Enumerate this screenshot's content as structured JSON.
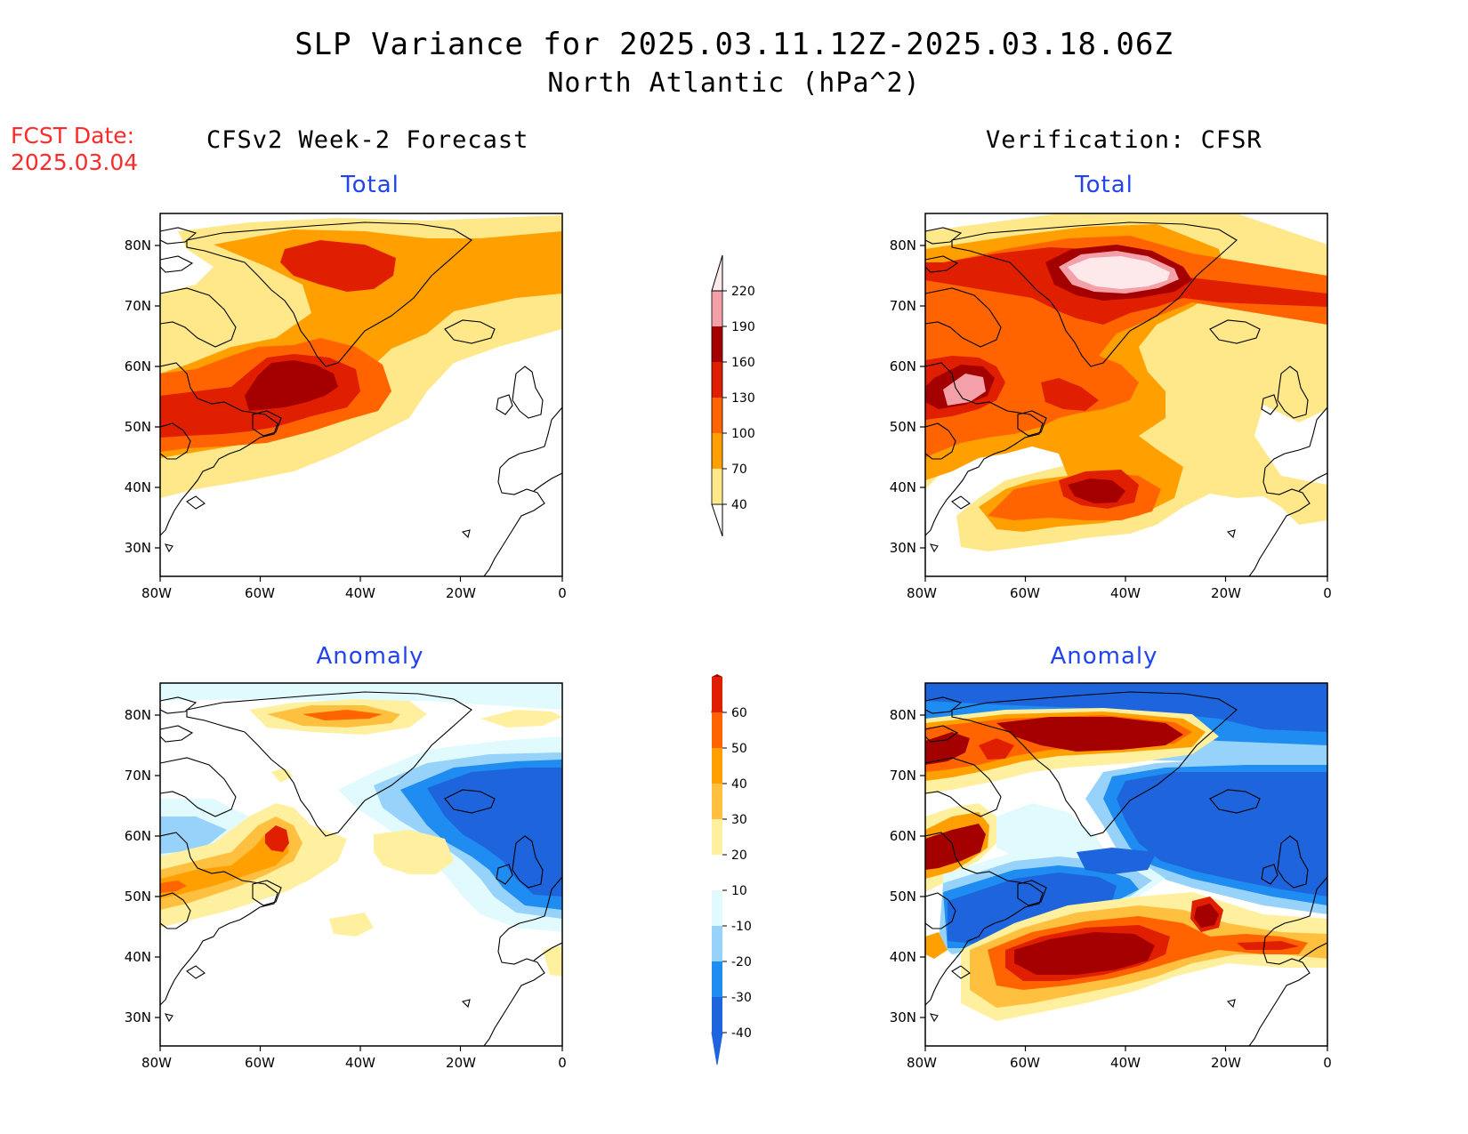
{
  "title": {
    "main": "SLP Variance for 2025.03.11.12Z-2025.03.18.06Z",
    "sub": "North Atlantic (hPa^2)"
  },
  "forecast_date": {
    "label": "FCST Date:",
    "value": "2025.03.04"
  },
  "columns": {
    "left": "CFSv2 Week-2 Forecast",
    "right": "Verification: CFSR"
  },
  "panels": {
    "forecast_total": "Total",
    "verification_total": "Total",
    "forecast_anomaly": "Anomaly",
    "verification_anomaly": "Anomaly"
  },
  "axes": {
    "lon_ticks": [
      "80W",
      "60W",
      "40W",
      "20W",
      "0"
    ],
    "lat_ticks": [
      "80N",
      "70N",
      "60N",
      "50N",
      "40N",
      "30N"
    ]
  },
  "colorbars": {
    "total": {
      "levels": [
        "40",
        "70",
        "100",
        "130",
        "160",
        "190",
        "220"
      ],
      "colors": [
        "#ffe88a",
        "#ffa000",
        "#ff6400",
        "#e01e00",
        "#a50000",
        "#f4a0a8",
        "#fde8ea"
      ]
    },
    "anomaly": {
      "levels": [
        "-40",
        "-30",
        "-20",
        "-10",
        "10",
        "20",
        "30",
        "40",
        "50",
        "60"
      ],
      "colors": [
        "#1e64dc",
        "#1e8cf0",
        "#96d2fa",
        "#e1fafe",
        "#ffffff",
        "#fff0a0",
        "#ffc040",
        "#ffa000",
        "#ff6400",
        "#e01e00",
        "#a50000"
      ]
    }
  }
}
